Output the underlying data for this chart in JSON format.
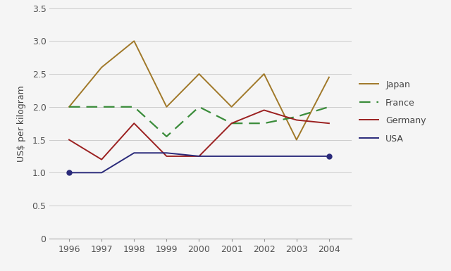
{
  "years": [
    1996,
    1997,
    1998,
    1999,
    2000,
    2001,
    2002,
    2003,
    2004
  ],
  "japan": [
    2.0,
    2.6,
    3.0,
    2.0,
    2.5,
    2.0,
    2.5,
    1.5,
    2.45
  ],
  "france": [
    2.0,
    2.0,
    2.0,
    1.55,
    2.0,
    1.75,
    1.75,
    1.85,
    2.0
  ],
  "germany": [
    1.5,
    1.2,
    1.75,
    1.25,
    1.25,
    1.75,
    1.95,
    1.8,
    1.75
  ],
  "usa": [
    1.0,
    1.0,
    1.3,
    1.3,
    1.25,
    1.25,
    1.25,
    1.25,
    1.25
  ],
  "usa_markers": [
    1996,
    2004
  ],
  "japan_color": "#a07828",
  "france_color": "#3a8c3a",
  "germany_color": "#9b2020",
  "usa_color": "#2a2a7a",
  "ylabel": "US$ per kilogram",
  "ylim": [
    0,
    3.5
  ],
  "yticks": [
    0,
    0.5,
    1.0,
    1.5,
    2.0,
    2.5,
    3.0,
    3.5
  ],
  "background_color": "#f5f5f5",
  "plot_bg": "#f5f5f5",
  "grid_color": "#cccccc"
}
